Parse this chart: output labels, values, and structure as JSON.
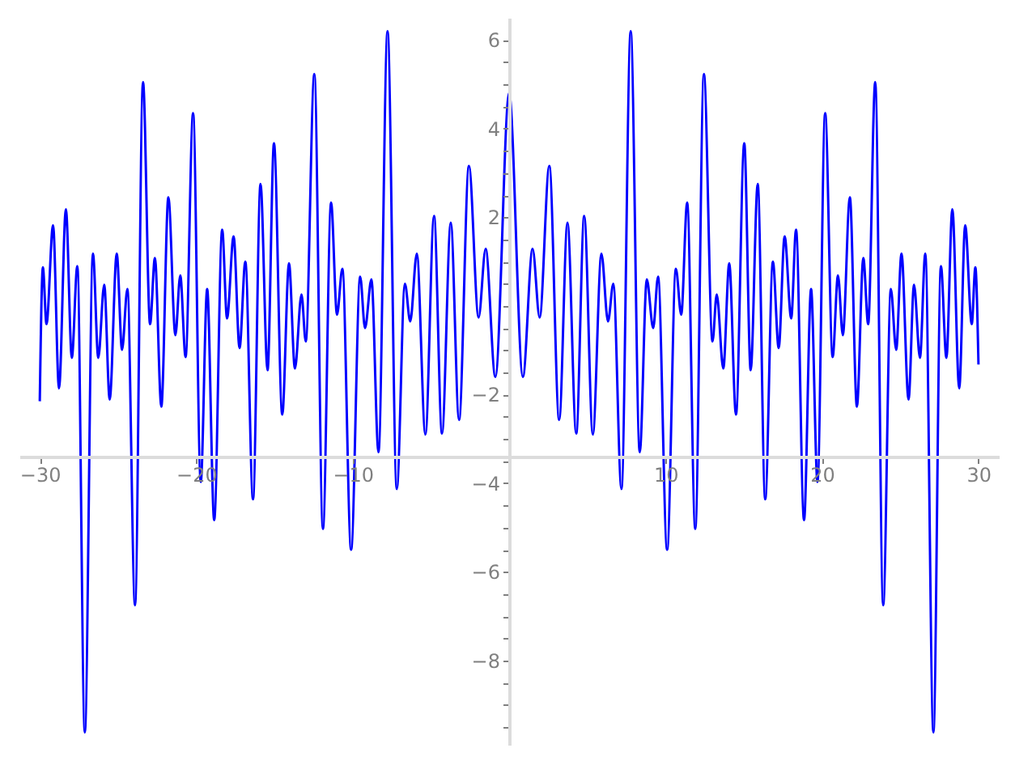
{
  "chart_data": {
    "type": "line",
    "xlim": [
      -31.3,
      31.3
    ],
    "ylim": [
      -9.9,
      6.5
    ],
    "xticks": [
      -30,
      -20,
      -10,
      {
        "value": 0,
        "label": null
      },
      10,
      20,
      30
    ],
    "yticks": [
      -8,
      -6,
      -4,
      -2,
      2,
      4,
      6,
      {
        "value": -9.5,
        "label": null
      },
      {
        "value": -9,
        "label": null
      },
      {
        "value": -8.5,
        "label": null
      },
      {
        "value": -7.5,
        "label": null
      },
      {
        "value": -7,
        "label": null
      },
      {
        "value": -6.5,
        "label": null
      },
      {
        "value": -5.5,
        "label": null
      },
      {
        "value": -5,
        "label": null
      },
      {
        "value": -4.5,
        "label": null
      },
      {
        "value": -3.5,
        "label": null
      },
      {
        "value": -3,
        "label": null
      },
      {
        "value": -2.5,
        "label": null
      },
      {
        "value": -1.5,
        "label": null
      },
      {
        "value": -1,
        "label": null
      },
      {
        "value": -0.5,
        "label": null
      },
      {
        "value": 0,
        "label": null
      },
      {
        "value": 0.5,
        "label": null
      },
      {
        "value": 1,
        "label": null
      },
      {
        "value": 1.5,
        "label": null
      },
      {
        "value": 2.5,
        "label": null
      },
      {
        "value": 3,
        "label": null
      },
      {
        "value": 3.5,
        "label": null
      },
      {
        "value": 4.5,
        "label": null
      },
      {
        "value": 5,
        "label": null
      },
      {
        "value": 5.5,
        "label": null
      }
    ],
    "grid": false,
    "marker": "none",
    "line_style": "solid",
    "series": [
      {
        "color": "#0000ff",
        "x": [
          -30,
          -29.8,
          -29.57,
          -29.15,
          -28.77,
          -28.33,
          -27.95,
          -27.6,
          -27.12,
          -26.6,
          -26.26,
          -25.88,
          -25.53,
          -25.08,
          -24.74,
          -24.4,
          -23.91,
          -23.4,
          -22.95,
          -22.64,
          -22.23,
          -21.78,
          -21.33,
          -21.02,
          -20.68,
          -20.2,
          -19.71,
          -19.3,
          -18.85,
          -18.34,
          -18.03,
          -17.61,
          -17.23,
          -16.86,
          -16.37,
          -15.89,
          -15.44,
          -15.03,
          -14.5,
          -14.07,
          -13.69,
          -13.27,
          -13.0,
          -12.45,
          -11.9,
          -11.38,
          -11.0,
          -10.66,
          -10.1,
          -9.52,
          -9.21,
          -8.8,
          -8.35,
          -7.77,
          -7.18,
          -6.66,
          -6.32,
          -5.9,
          -5.35,
          -4.8,
          -4.29,
          -3.73,
          -3.2,
          -2.57,
          -1.95,
          -1.5,
          -0.88,
          0,
          0.88,
          1.5,
          1.95,
          2.57,
          3.2,
          3.73,
          4.29,
          4.8,
          5.35,
          5.9,
          6.32,
          6.66,
          7.18,
          7.77,
          8.35,
          8.8,
          9.21,
          9.52,
          10.1,
          10.66,
          11.0,
          11.38,
          11.9,
          12.45,
          13.0,
          13.27,
          13.69,
          14.07,
          14.5,
          15.03,
          15.44,
          15.89,
          16.37,
          16.86,
          17.23,
          17.61,
          18.03,
          18.34,
          18.85,
          19.3,
          19.71,
          20.2,
          20.68,
          21.02,
          21.33,
          21.78,
          22.23,
          22.64,
          22.95,
          23.4,
          23.91,
          24.4,
          24.74,
          25.08,
          25.53,
          25.88,
          26.26,
          26.6,
          27.12,
          27.6,
          27.95,
          28.33,
          28.77,
          29.15,
          29.57,
          29.8,
          30
        ],
        "values": [
          -2.15,
          0.87,
          -0.41,
          1.82,
          -1.86,
          2.18,
          -1.17,
          0.9,
          -9.62,
          1.18,
          -1.17,
          0.48,
          -2.11,
          1.18,
          -0.99,
          0.38,
          -6.75,
          5.05,
          -0.41,
          1.08,
          -2.27,
          2.45,
          -0.66,
          0.69,
          -1.15,
          4.35,
          -3.97,
          0.38,
          -4.83,
          1.72,
          -0.28,
          1.57,
          -0.95,
          1.0,
          -4.36,
          2.75,
          -1.45,
          3.67,
          -2.45,
          0.96,
          -1.41,
          0.26,
          -0.8,
          5.23,
          -5.03,
          2.33,
          -0.2,
          0.84,
          -5.5,
          0.66,
          -0.5,
          0.6,
          -3.3,
          6.2,
          -4.13,
          0.5,
          -0.35,
          1.18,
          -2.9,
          2.03,
          -2.88,
          1.88,
          -2.57,
          3.16,
          -0.26,
          1.29,
          -1.6,
          4.8,
          -1.6,
          1.29,
          -0.26,
          3.16,
          -2.57,
          1.88,
          -2.88,
          2.03,
          -2.9,
          1.18,
          -0.35,
          0.5,
          -4.13,
          6.2,
          -3.3,
          0.6,
          -0.5,
          0.66,
          -5.5,
          0.84,
          -0.2,
          2.33,
          -5.03,
          5.23,
          -0.8,
          0.26,
          -1.41,
          0.96,
          -2.45,
          3.67,
          -1.45,
          2.75,
          -4.36,
          1.0,
          -0.95,
          1.57,
          -0.28,
          1.72,
          -4.83,
          0.38,
          -3.97,
          4.35,
          -1.15,
          0.69,
          -0.66,
          2.45,
          -2.27,
          1.08,
          -0.41,
          5.05,
          -6.75,
          0.38,
          -0.99,
          1.18,
          -2.11,
          0.48,
          -1.17,
          1.18,
          -9.62,
          0.9,
          -1.17,
          2.18,
          -1.86,
          1.82,
          -0.41,
          0.87,
          -1.32
        ]
      }
    ]
  }
}
